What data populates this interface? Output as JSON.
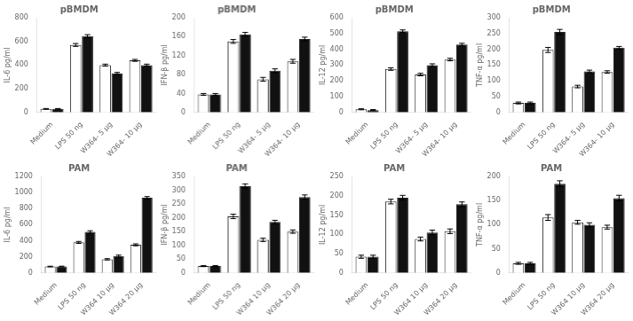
{
  "chart_data": [
    {
      "type": "bar",
      "title": "pBMDM",
      "y_label": "IL-6 pg/ml",
      "categories": [
        "Medium",
        "LPS 50 ng",
        "W364- 5 μg",
        "W364- 10 μg"
      ],
      "series": [
        {
          "color": "#ffffff",
          "values": [
            30,
            570,
            400,
            440
          ],
          "errors": [
            3,
            12,
            8,
            8
          ]
        },
        {
          "color": "#111111",
          "values": [
            30,
            645,
            330,
            400
          ],
          "errors": [
            3,
            12,
            8,
            8
          ]
        }
      ],
      "ylim": [
        0,
        800
      ],
      "yticks": [
        0,
        200,
        400,
        600,
        800
      ],
      "grid": false
    },
    {
      "type": "bar",
      "title": "pBMDM",
      "y_label": "IFN-β pg/ml",
      "categories": [
        "Medium",
        "LPS 50 ng",
        "W364- 5 μg",
        "W364- 10 μg"
      ],
      "series": [
        {
          "color": "#ffffff",
          "values": [
            38,
            150,
            70,
            108
          ],
          "errors": [
            2,
            4,
            4,
            4
          ]
        },
        {
          "color": "#111111",
          "values": [
            38,
            165,
            88,
            155
          ],
          "errors": [
            2,
            4,
            4,
            4
          ]
        }
      ],
      "ylim": [
        0,
        200
      ],
      "yticks": [
        0,
        40,
        80,
        120,
        160,
        200
      ],
      "grid": false
    },
    {
      "type": "bar",
      "title": "pBMDM",
      "y_label": "IL-12 pg/ml",
      "categories": [
        "Medium",
        "LPS 50 ng",
        "W364- 5 μg",
        "W364- 10 μg"
      ],
      "series": [
        {
          "color": "#ffffff",
          "values": [
            20,
            275,
            240,
            335
          ],
          "errors": [
            3,
            8,
            8,
            8
          ]
        },
        {
          "color": "#111111",
          "values": [
            15,
            515,
            300,
            430
          ],
          "errors": [
            3,
            8,
            8,
            8
          ]
        }
      ],
      "ylim": [
        0,
        600
      ],
      "yticks": [
        0,
        100,
        200,
        300,
        400,
        500,
        600
      ],
      "grid": false
    },
    {
      "type": "bar",
      "title": "pBMDM",
      "y_label": "TNF-α pg/ml",
      "categories": [
        "Medium",
        "LPS 50 ng",
        "W364- 5 μg",
        "W364- 10 μg"
      ],
      "series": [
        {
          "color": "#ffffff",
          "values": [
            30,
            198,
            82,
            128
          ],
          "errors": [
            3,
            8,
            4,
            4
          ]
        },
        {
          "color": "#111111",
          "values": [
            30,
            255,
            130,
            205
          ],
          "errors": [
            3,
            8,
            4,
            4
          ]
        }
      ],
      "ylim": [
        0,
        300
      ],
      "yticks": [
        0,
        50,
        100,
        150,
        200,
        250,
        300
      ],
      "grid": false
    },
    {
      "type": "bar",
      "title": "PAM",
      "y_label": "IL-6 pg/ml",
      "categories": [
        "Medium",
        "LPS 50 ng",
        "W364 10 μg",
        "W364 20 μg"
      ],
      "series": [
        {
          "color": "#ffffff",
          "values": [
            80,
            380,
            170,
            350
          ],
          "errors": [
            4,
            12,
            8,
            12
          ]
        },
        {
          "color": "#111111",
          "values": [
            80,
            510,
            210,
            935
          ],
          "errors": [
            4,
            15,
            12,
            15
          ]
        }
      ],
      "ylim": [
        0,
        1200
      ],
      "yticks": [
        0,
        200,
        400,
        600,
        800,
        1000,
        1200
      ],
      "grid": false
    },
    {
      "type": "bar",
      "title": "PAM",
      "y_label": "IFN-β pg/ml",
      "categories": [
        "Medium",
        "LPS 50 ng",
        "W364 10 μg",
        "W364 20 μg"
      ],
      "series": [
        {
          "color": "#ffffff",
          "values": [
            25,
            205,
            120,
            150
          ],
          "errors": [
            2,
            8,
            6,
            6
          ]
        },
        {
          "color": "#111111",
          "values": [
            25,
            315,
            185,
            275
          ],
          "errors": [
            2,
            8,
            6,
            8
          ]
        }
      ],
      "ylim": [
        0,
        350
      ],
      "yticks": [
        0,
        50,
        100,
        150,
        200,
        250,
        300,
        350
      ],
      "grid": false
    },
    {
      "type": "bar",
      "title": "PAM",
      "y_label": "IL-12 pg/ml",
      "categories": [
        "Medium",
        "LPS 50 ng",
        "W364 10 μg",
        "W364 20 μg"
      ],
      "series": [
        {
          "color": "#ffffff",
          "values": [
            42,
            185,
            88,
            108
          ],
          "errors": [
            4,
            6,
            5,
            6
          ]
        },
        {
          "color": "#111111",
          "values": [
            42,
            195,
            105,
            178
          ],
          "errors": [
            4,
            6,
            6,
            6
          ]
        }
      ],
      "ylim": [
        0,
        250
      ],
      "yticks": [
        0,
        50,
        100,
        150,
        200,
        250
      ],
      "grid": false
    },
    {
      "type": "bar",
      "title": "PAM",
      "y_label": "TNF-α pg/ml",
      "categories": [
        "Medium",
        "LPS 50 ng",
        "W364 10 μg",
        "W364 20 μg"
      ],
      "series": [
        {
          "color": "#ffffff",
          "values": [
            20,
            115,
            105,
            95
          ],
          "errors": [
            2,
            6,
            4,
            4
          ]
        },
        {
          "color": "#111111",
          "values": [
            20,
            185,
            100,
            155
          ],
          "errors": [
            2,
            6,
            4,
            6
          ]
        }
      ],
      "ylim": [
        0,
        200
      ],
      "yticks": [
        0,
        50,
        100,
        150,
        200
      ],
      "grid": false
    }
  ]
}
